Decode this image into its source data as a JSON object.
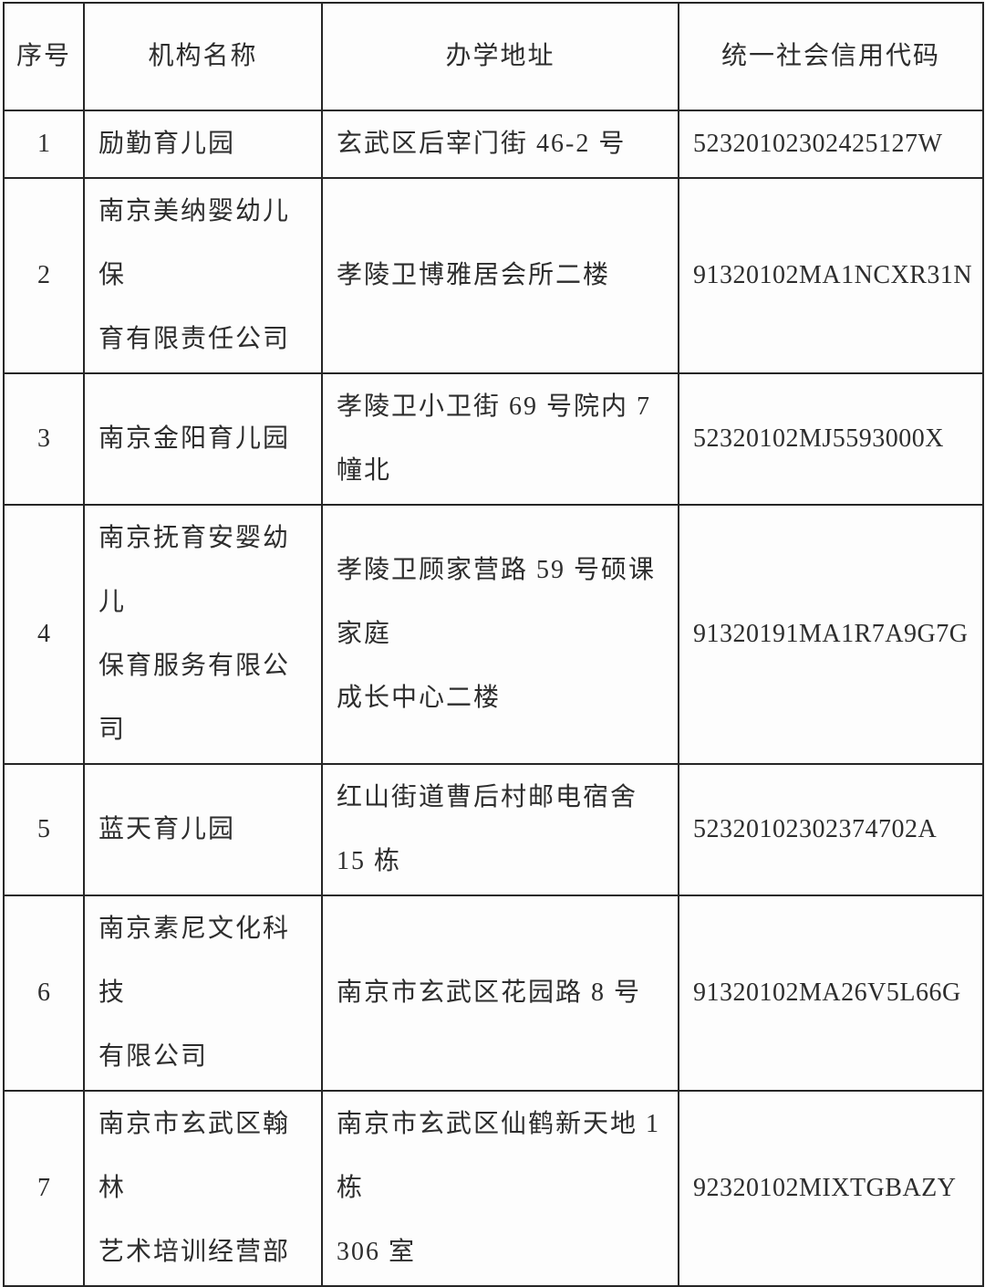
{
  "table": {
    "headers": [
      "序号",
      "机构名称",
      "办学地址",
      "统一社会信用代码"
    ],
    "rows": [
      {
        "num": "1",
        "name": [
          "励勤育儿园"
        ],
        "address": [
          "玄武区后宰门街 46-2 号"
        ],
        "code": "52320102302425127W"
      },
      {
        "num": "2",
        "name": [
          "南京美纳婴幼儿保",
          "育有限责任公司"
        ],
        "address": [
          "孝陵卫博雅居会所二楼"
        ],
        "code": "91320102MA1NCXR31N"
      },
      {
        "num": "3",
        "name": [
          "南京金阳育儿园"
        ],
        "address": [
          "孝陵卫小卫街 69 号院内 7 幢北"
        ],
        "code": "52320102MJ5593000X"
      },
      {
        "num": "4",
        "name": [
          "南京抚育安婴幼儿",
          "保育服务有限公司"
        ],
        "address": [
          "孝陵卫顾家营路 59 号硕课家庭",
          "成长中心二楼"
        ],
        "code": "91320191MA1R7A9G7G"
      },
      {
        "num": "5",
        "name": [
          "蓝天育儿园"
        ],
        "address": [
          "红山街道曹后村邮电宿舍 15 栋"
        ],
        "code": "52320102302374702A"
      },
      {
        "num": "6",
        "name": [
          "南京素尼文化科技",
          "有限公司"
        ],
        "address": [
          "南京市玄武区花园路 8 号"
        ],
        "code": "91320102MA26V5L66G"
      },
      {
        "num": "7",
        "name": [
          "南京市玄武区翰林",
          "艺术培训经营部"
        ],
        "address": [
          "南京市玄武区仙鹤新天地 1 栋",
          "306 室"
        ],
        "code": "92320102MIXTGBAZY"
      }
    ]
  }
}
